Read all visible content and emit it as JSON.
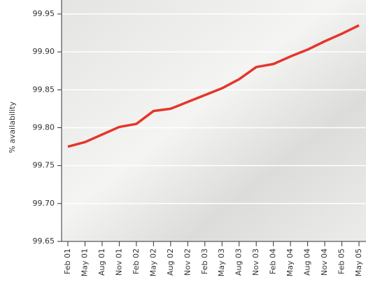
{
  "chart_data": {
    "type": "line",
    "y_label": "% availability",
    "categories": [
      "Feb 01",
      "May 01",
      "Aug 01",
      "Nov 01",
      "Feb 02",
      "May 02",
      "Aug 02",
      "Nov 02",
      "Feb 03",
      "May 03",
      "Aug 03",
      "Nov 03",
      "Feb 04",
      "May 04",
      "Aug 04",
      "Nov 04",
      "Feb 05",
      "May 05"
    ],
    "series": [
      {
        "color": "#e5352b",
        "values": [
          99.775,
          99.781,
          99.791,
          99.801,
          99.805,
          99.822,
          99.825,
          99.834,
          99.843,
          99.852,
          99.864,
          99.88,
          99.884,
          99.894,
          99.903,
          99.914,
          99.924,
          99.935
        ]
      }
    ],
    "ylim": [
      99.65,
      99.95
    ],
    "yticks": [
      99.65,
      {
        "value": 99.7,
        "label": "99.70"
      },
      99.75,
      {
        "value": 99.8,
        "label": "99.80"
      },
      99.85,
      {
        "value": 99.9,
        "label": "99.90"
      },
      99.95
    ],
    "grid": true
  }
}
